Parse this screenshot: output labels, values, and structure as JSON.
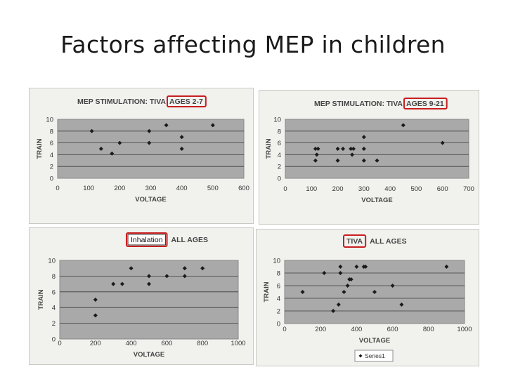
{
  "title": "Factors affecting MEP in children",
  "chart_data": [
    {
      "type": "scatter",
      "header_prefix": "MEP STIMULATION: TIVA",
      "header_highlight": "AGES 2-7",
      "xlabel": "VOLTAGE",
      "ylabel": "TRAIN",
      "xlim": [
        0,
        600
      ],
      "ylim": [
        0,
        10
      ],
      "xticks": [
        "0",
        "100",
        "200",
        "300",
        "400",
        "500",
        "600"
      ],
      "yticks": [
        "0",
        "2",
        "4",
        "6",
        "8",
        "10"
      ],
      "grid": true,
      "points": [
        [
          110,
          8
        ],
        [
          140,
          5
        ],
        [
          175,
          4.2
        ],
        [
          200,
          6
        ],
        [
          295,
          8
        ],
        [
          295,
          6
        ],
        [
          350,
          9
        ],
        [
          400,
          7
        ],
        [
          400,
          5
        ],
        [
          500,
          9
        ]
      ]
    },
    {
      "type": "scatter",
      "header_prefix": "MEP STIMULATION: TIVA",
      "header_highlight": "AGES 9-21",
      "xlabel": "VOLTAGE",
      "ylabel": "TRAIN",
      "xlim": [
        0,
        700
      ],
      "ylim": [
        0,
        10
      ],
      "xticks": [
        "0",
        "100",
        "200",
        "300",
        "400",
        "500",
        "600",
        "700"
      ],
      "yticks": [
        "0",
        "2",
        "4",
        "6",
        "8",
        "10"
      ],
      "grid": true,
      "points": [
        [
          115,
          5
        ],
        [
          125,
          5
        ],
        [
          120,
          4
        ],
        [
          115,
          3
        ],
        [
          200,
          5
        ],
        [
          200,
          3
        ],
        [
          220,
          5
        ],
        [
          250,
          5
        ],
        [
          260,
          5
        ],
        [
          255,
          4
        ],
        [
          300,
          7
        ],
        [
          300,
          5
        ],
        [
          300,
          3
        ],
        [
          350,
          3
        ],
        [
          450,
          9
        ],
        [
          600,
          6
        ]
      ]
    },
    {
      "type": "scatter",
      "header_prefix": "ALL AGES",
      "header_highlight": "Inhalation",
      "xlabel": "VOLTAGE",
      "ylabel": "TRAIN",
      "xlim": [
        0,
        1000
      ],
      "ylim": [
        0,
        10
      ],
      "xticks": [
        "0",
        "200",
        "400",
        "600",
        "800",
        "1000"
      ],
      "yticks": [
        "0",
        "2",
        "4",
        "6",
        "8",
        "10"
      ],
      "grid": true,
      "points": [
        [
          200,
          5
        ],
        [
          200,
          3
        ],
        [
          300,
          7
        ],
        [
          350,
          7
        ],
        [
          400,
          9
        ],
        [
          500,
          8
        ],
        [
          500,
          7
        ],
        [
          600,
          8
        ],
        [
          700,
          9
        ],
        [
          700,
          8
        ],
        [
          800,
          9
        ]
      ]
    },
    {
      "type": "scatter",
      "header_prefix": "ALL AGES",
      "header_highlight": "TIVA",
      "xlabel": "VOLTAGE",
      "ylabel": "TRAIN",
      "xlim": [
        0,
        1000
      ],
      "ylim": [
        0,
        10
      ],
      "xticks": [
        "0",
        "200",
        "400",
        "600",
        "800",
        "1000"
      ],
      "yticks": [
        "0",
        "2",
        "4",
        "6",
        "8",
        "10"
      ],
      "grid": true,
      "legend": "Series1",
      "points": [
        [
          100,
          5
        ],
        [
          220,
          8
        ],
        [
          270,
          2
        ],
        [
          300,
          3
        ],
        [
          310,
          9
        ],
        [
          310,
          8
        ],
        [
          330,
          5
        ],
        [
          350,
          6
        ],
        [
          360,
          7
        ],
        [
          370,
          7
        ],
        [
          400,
          9
        ],
        [
          440,
          9
        ],
        [
          450,
          9
        ],
        [
          500,
          5
        ],
        [
          600,
          6
        ],
        [
          650,
          3
        ],
        [
          900,
          9
        ]
      ]
    }
  ]
}
